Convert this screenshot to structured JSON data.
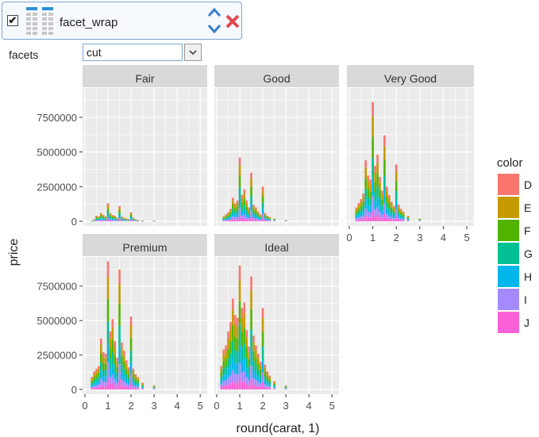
{
  "step": {
    "checked": true,
    "checkmark": "✔",
    "name": "facet_wrap",
    "icons": [
      "table-icon",
      "reorder-arrows-icon",
      "close-icon"
    ]
  },
  "facets": {
    "label": "facets",
    "value": "cut"
  },
  "colors": {
    "accent": "#3a7fd0",
    "close": "#e0484f",
    "panel": "#ebebeb",
    "strip": "#d9d9d9"
  },
  "chart_data": {
    "type": "bar",
    "xlabel": "round(carat, 1)",
    "ylabel": "price",
    "xlim": [
      0,
      5.2
    ],
    "ylim": [
      0,
      9500000
    ],
    "x_ticks": [
      0,
      1,
      2,
      3,
      4,
      5
    ],
    "y_ticks": [
      0,
      2500000,
      5000000,
      7500000
    ],
    "y_tick_labels": [
      "0",
      "2500000",
      "5000000",
      "7500000"
    ],
    "legend": {
      "title": "color",
      "position": "right",
      "entries": [
        {
          "name": "D",
          "color": "#F8766D"
        },
        {
          "name": "E",
          "color": "#C49A00"
        },
        {
          "name": "F",
          "color": "#53B400"
        },
        {
          "name": "G",
          "color": "#00C094"
        },
        {
          "name": "H",
          "color": "#00B6EB"
        },
        {
          "name": "I",
          "color": "#A58AFF"
        },
        {
          "name": "J",
          "color": "#FB61D7"
        }
      ]
    },
    "facets": [
      {
        "name": "Fair",
        "x": [
          0.3,
          0.4,
          0.5,
          0.6,
          0.7,
          0.8,
          0.9,
          1.0,
          1.1,
          1.2,
          1.3,
          1.4,
          1.5,
          1.6,
          1.7,
          1.8,
          1.9,
          2.0,
          2.1,
          2.2,
          2.3,
          2.5,
          3.0
        ],
        "y": [
          20000,
          150000,
          400000,
          350000,
          600000,
          450000,
          350000,
          1300000,
          600000,
          450000,
          400000,
          250000,
          1100000,
          350000,
          250000,
          200000,
          150000,
          650000,
          250000,
          150000,
          80000,
          60000,
          40000
        ]
      },
      {
        "name": "Good",
        "x": [
          0.3,
          0.4,
          0.5,
          0.6,
          0.7,
          0.8,
          0.9,
          1.0,
          1.1,
          1.2,
          1.3,
          1.4,
          1.5,
          1.6,
          1.7,
          1.8,
          1.9,
          2.0,
          2.1,
          2.2,
          2.3,
          2.5,
          3.0
        ],
        "y": [
          350000,
          500000,
          650000,
          900000,
          1700000,
          1300000,
          1500000,
          4600000,
          1900000,
          2300000,
          1500000,
          1000000,
          3500000,
          1200000,
          1000000,
          700000,
          500000,
          2500000,
          600000,
          400000,
          300000,
          200000,
          100000
        ]
      },
      {
        "name": "Very Good",
        "x": [
          0.3,
          0.4,
          0.5,
          0.6,
          0.7,
          0.8,
          0.9,
          1.0,
          1.1,
          1.2,
          1.3,
          1.4,
          1.5,
          1.6,
          1.7,
          1.8,
          1.9,
          2.0,
          2.1,
          2.2,
          2.3,
          2.5,
          3.0
        ],
        "y": [
          1000000,
          1300000,
          1600000,
          2000000,
          4400000,
          3300000,
          3000000,
          8600000,
          4000000,
          4800000,
          3200000,
          2200000,
          6200000,
          2500000,
          1900000,
          1400000,
          1100000,
          4100000,
          1200000,
          900000,
          700000,
          400000,
          200000
        ]
      },
      {
        "name": "Premium",
        "x": [
          0.3,
          0.4,
          0.5,
          0.6,
          0.7,
          0.8,
          0.9,
          1.0,
          1.1,
          1.2,
          1.3,
          1.4,
          1.5,
          1.6,
          1.7,
          1.8,
          1.9,
          2.0,
          2.1,
          2.2,
          2.3,
          2.5,
          3.0
        ],
        "y": [
          900000,
          1300000,
          1500000,
          1700000,
          3700000,
          2700000,
          2600000,
          9300000,
          4200000,
          5100000,
          3500000,
          2300000,
          8700000,
          3400000,
          2800000,
          2100000,
          1600000,
          5300000,
          1500000,
          1100000,
          900000,
          500000,
          300000
        ]
      },
      {
        "name": "Ideal",
        "x": [
          0.2,
          0.3,
          0.4,
          0.5,
          0.6,
          0.7,
          0.8,
          0.9,
          1.0,
          1.1,
          1.2,
          1.3,
          1.4,
          1.5,
          1.6,
          1.7,
          1.8,
          1.9,
          2.0,
          2.1,
          2.2,
          2.3,
          2.5,
          3.0
        ],
        "y": [
          1700000,
          2900000,
          3200000,
          4200000,
          4900000,
          6600000,
          5400000,
          5200000,
          9000000,
          5900000,
          6300000,
          4300000,
          3100000,
          8200000,
          3900000,
          3200000,
          2600000,
          2000000,
          5900000,
          1800000,
          1300000,
          1000000,
          600000,
          300000
        ]
      }
    ]
  }
}
